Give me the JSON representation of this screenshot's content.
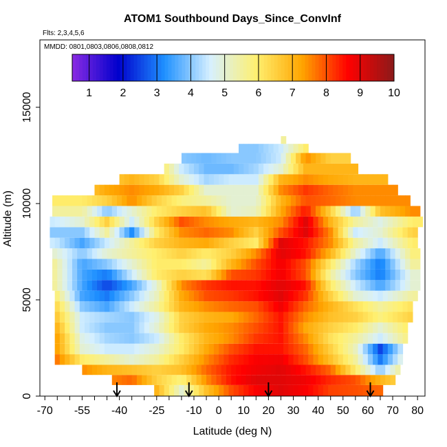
{
  "chart_data": {
    "type": "heatmap",
    "title": "ATOM1 Southbound Days_Since_ConvInf",
    "flights_label": "Flts: 2,3,4,5,6",
    "mmdd_label": "MMDD: 0801,0803,0806,0808,0812",
    "xlabel": "Latitude (deg N)",
    "ylabel": "Altitude (m)",
    "xlim": [
      -72,
      83
    ],
    "ylim": [
      0,
      18500
    ],
    "x_ticks_labeled": [
      "-70",
      "-55",
      "-40",
      "-25",
      "-10",
      "0",
      "10",
      "20",
      "30",
      "40",
      "50",
      "60",
      "70",
      "80"
    ],
    "x_ticks_labeled_values": [
      -70,
      -55,
      -40,
      -25,
      -10,
      0,
      10,
      20,
      30,
      40,
      50,
      60,
      70,
      80
    ],
    "x_ticks_minor_values": [
      -65,
      -60,
      -50,
      -45,
      -35,
      -30,
      -20,
      -15,
      -5,
      5,
      15,
      25,
      35,
      45,
      55,
      65,
      75
    ],
    "y_ticks": [
      "0",
      "5000",
      "10000",
      "15000"
    ],
    "y_ticks_values": [
      0,
      5000,
      10000,
      15000
    ],
    "colorbar": {
      "ticks": [
        "1",
        "2",
        "3",
        "4",
        "5",
        "6",
        "7",
        "8",
        "9",
        "10"
      ],
      "min": 0.5,
      "max": 10,
      "colors": [
        "#8a2be2",
        "#0000cd",
        "#1e90ff",
        "#d6f0ff",
        "#fff070",
        "#ffa500",
        "#ff0000",
        "#8b1a1a"
      ]
    },
    "profile_arrows_latitude": [
      -41,
      -12,
      20,
      61
    ],
    "alt_bins_m": [
      300,
      850,
      1350,
      1900,
      2450,
      3000,
      3550,
      4100,
      4650,
      5200,
      5750,
      6300,
      6850,
      7400,
      7950,
      8500,
      9050,
      9600,
      10150,
      10700,
      11250,
      11800,
      12350,
      12900,
      13300
    ],
    "alt_bin_ranges": [
      [
        -26,
        65
      ],
      [
        -43,
        70
      ],
      [
        -55,
        72
      ],
      [
        -66,
        73
      ],
      [
        -66,
        74
      ],
      [
        -66,
        75
      ],
      [
        -66,
        76
      ],
      [
        -66,
        77
      ],
      [
        -66,
        78
      ],
      [
        -66,
        79
      ],
      [
        -67,
        80
      ],
      [
        -67,
        80
      ],
      [
        -67,
        80
      ],
      [
        -67,
        80
      ],
      [
        -68,
        80
      ],
      [
        -68,
        80
      ],
      [
        -68,
        81
      ],
      [
        -67,
        81
      ],
      [
        -67,
        76
      ],
      [
        -50,
        72
      ],
      [
        -40,
        67
      ],
      [
        -22,
        55
      ],
      [
        -15,
        52
      ],
      [
        8,
        35
      ],
      [
        25,
        27
      ]
    ],
    "anchors_lat": [
      -66,
      -55,
      -45,
      -35,
      -25,
      -15,
      -5,
      5,
      15,
      25,
      35,
      45,
      55,
      65,
      78
    ],
    "value_grid": [
      [
        6.5,
        6.5,
        6.5,
        7.2,
        7.0,
        5.0,
        6.8,
        8.0,
        8.7,
        9.0,
        8.7,
        8.1,
        8.0,
        7.8,
        7.0
      ],
      [
        7.5,
        7.5,
        7.5,
        7.8,
        6.5,
        5.8,
        7.5,
        8.5,
        9.0,
        9.0,
        8.8,
        8.3,
        8.0,
        7.0,
        6.0
      ],
      [
        7.8,
        7.5,
        7.0,
        6.8,
        6.5,
        6.8,
        7.8,
        8.5,
        8.8,
        9.0,
        8.5,
        7.8,
        6.0,
        4.0,
        6.5
      ],
      [
        7.8,
        6.0,
        5.5,
        5.0,
        5.5,
        6.5,
        7.5,
        8.3,
        8.7,
        8.8,
        8.0,
        6.8,
        5.5,
        3.0,
        5.8
      ],
      [
        7.5,
        5.0,
        4.5,
        4.5,
        5.0,
        6.0,
        7.2,
        8.0,
        8.5,
        8.5,
        7.8,
        6.5,
        5.2,
        2.5,
        5.5
      ],
      [
        7.5,
        4.8,
        4.2,
        4.0,
        4.5,
        6.0,
        7.0,
        7.5,
        8.2,
        8.5,
        7.5,
        6.2,
        5.5,
        4.5,
        6.0
      ],
      [
        7.2,
        4.5,
        4.0,
        4.0,
        5.0,
        6.5,
        7.2,
        7.5,
        8.0,
        8.5,
        7.2,
        6.5,
        6.0,
        5.0,
        6.2
      ],
      [
        6.8,
        4.5,
        4.2,
        4.0,
        4.8,
        6.5,
        7.0,
        7.2,
        7.8,
        8.5,
        7.5,
        6.8,
        6.5,
        5.8,
        6.5
      ],
      [
        6.5,
        4.0,
        3.5,
        4.5,
        5.5,
        7.0,
        7.5,
        7.8,
        8.0,
        8.8,
        7.8,
        7.0,
        6.2,
        5.5,
        6.2
      ],
      [
        6.0,
        3.5,
        3.0,
        4.0,
        5.2,
        7.2,
        8.0,
        8.2,
        8.5,
        9.0,
        8.2,
        6.5,
        5.0,
        4.5,
        5.5
      ],
      [
        5.5,
        3.5,
        2.5,
        3.5,
        5.0,
        7.5,
        8.2,
        8.5,
        8.5,
        9.0,
        8.5,
        6.0,
        4.5,
        3.5,
        5.0
      ],
      [
        5.5,
        3.5,
        3.0,
        4.5,
        6.0,
        6.5,
        6.2,
        8.0,
        8.2,
        8.8,
        8.0,
        5.5,
        4.0,
        3.0,
        5.0
      ],
      [
        5.5,
        3.5,
        4.0,
        5.0,
        6.0,
        6.0,
        5.5,
        7.0,
        8.0,
        8.8,
        8.0,
        6.0,
        4.2,
        3.0,
        5.5
      ],
      [
        5.0,
        4.0,
        5.0,
        5.5,
        6.0,
        6.5,
        6.0,
        6.5,
        7.5,
        9.0,
        8.5,
        7.0,
        5.0,
        3.5,
        5.8
      ],
      [
        4.5,
        3.5,
        4.5,
        5.5,
        6.5,
        7.0,
        7.2,
        6.5,
        6.0,
        9.0,
        8.5,
        7.5,
        5.5,
        4.5,
        6.0
      ],
      [
        4.0,
        4.0,
        5.5,
        3.2,
        6.0,
        7.5,
        7.8,
        7.5,
        6.5,
        8.0,
        9.0,
        7.5,
        4.5,
        5.0,
        6.5
      ],
      [
        4.5,
        5.0,
        6.5,
        4.5,
        6.5,
        8.0,
        7.5,
        7.2,
        7.0,
        7.5,
        9.0,
        7.0,
        5.5,
        4.8,
        6.0
      ],
      [
        5.5,
        5.5,
        4.0,
        5.0,
        6.0,
        6.5,
        6.8,
        5.0,
        5.2,
        7.2,
        8.5,
        6.5,
        4.0,
        6.8,
        7.5
      ],
      [
        6.0,
        6.0,
        6.5,
        7.5,
        6.5,
        5.8,
        5.5,
        5.0,
        5.0,
        7.0,
        8.0,
        7.8,
        7.5,
        7.5,
        7.5
      ],
      [
        6.5,
        6.5,
        7.2,
        7.5,
        7.2,
        6.5,
        5.0,
        5.0,
        5.0,
        7.5,
        8.2,
        7.8,
        7.5,
        7.5,
        7.5
      ],
      [
        6.5,
        6.5,
        6.5,
        7.0,
        6.5,
        5.0,
        4.2,
        4.5,
        4.5,
        7.0,
        7.5,
        7.2,
        7.0,
        7.0,
        7.0
      ],
      [
        6.5,
        6.5,
        6.5,
        6.5,
        6.5,
        4.5,
        3.8,
        3.8,
        4.2,
        5.0,
        7.0,
        7.0,
        7.0,
        7.0,
        7.0
      ],
      [
        6.5,
        6.5,
        6.5,
        6.5,
        6.5,
        4.0,
        3.8,
        4.0,
        4.0,
        4.5,
        7.5,
        6.5,
        6.5,
        6.5,
        6.5
      ],
      [
        6.0,
        6.0,
        6.0,
        6.0,
        6.0,
        5.0,
        5.0,
        4.0,
        4.0,
        4.5,
        6.0,
        6.0,
        6.0,
        6.0,
        6.0
      ],
      [
        5.5,
        5.5,
        5.5,
        5.5,
        5.5,
        5.5,
        5.5,
        5.5,
        5.5,
        5.5,
        5.5,
        5.5,
        5.5,
        5.5,
        5.5
      ]
    ]
  }
}
